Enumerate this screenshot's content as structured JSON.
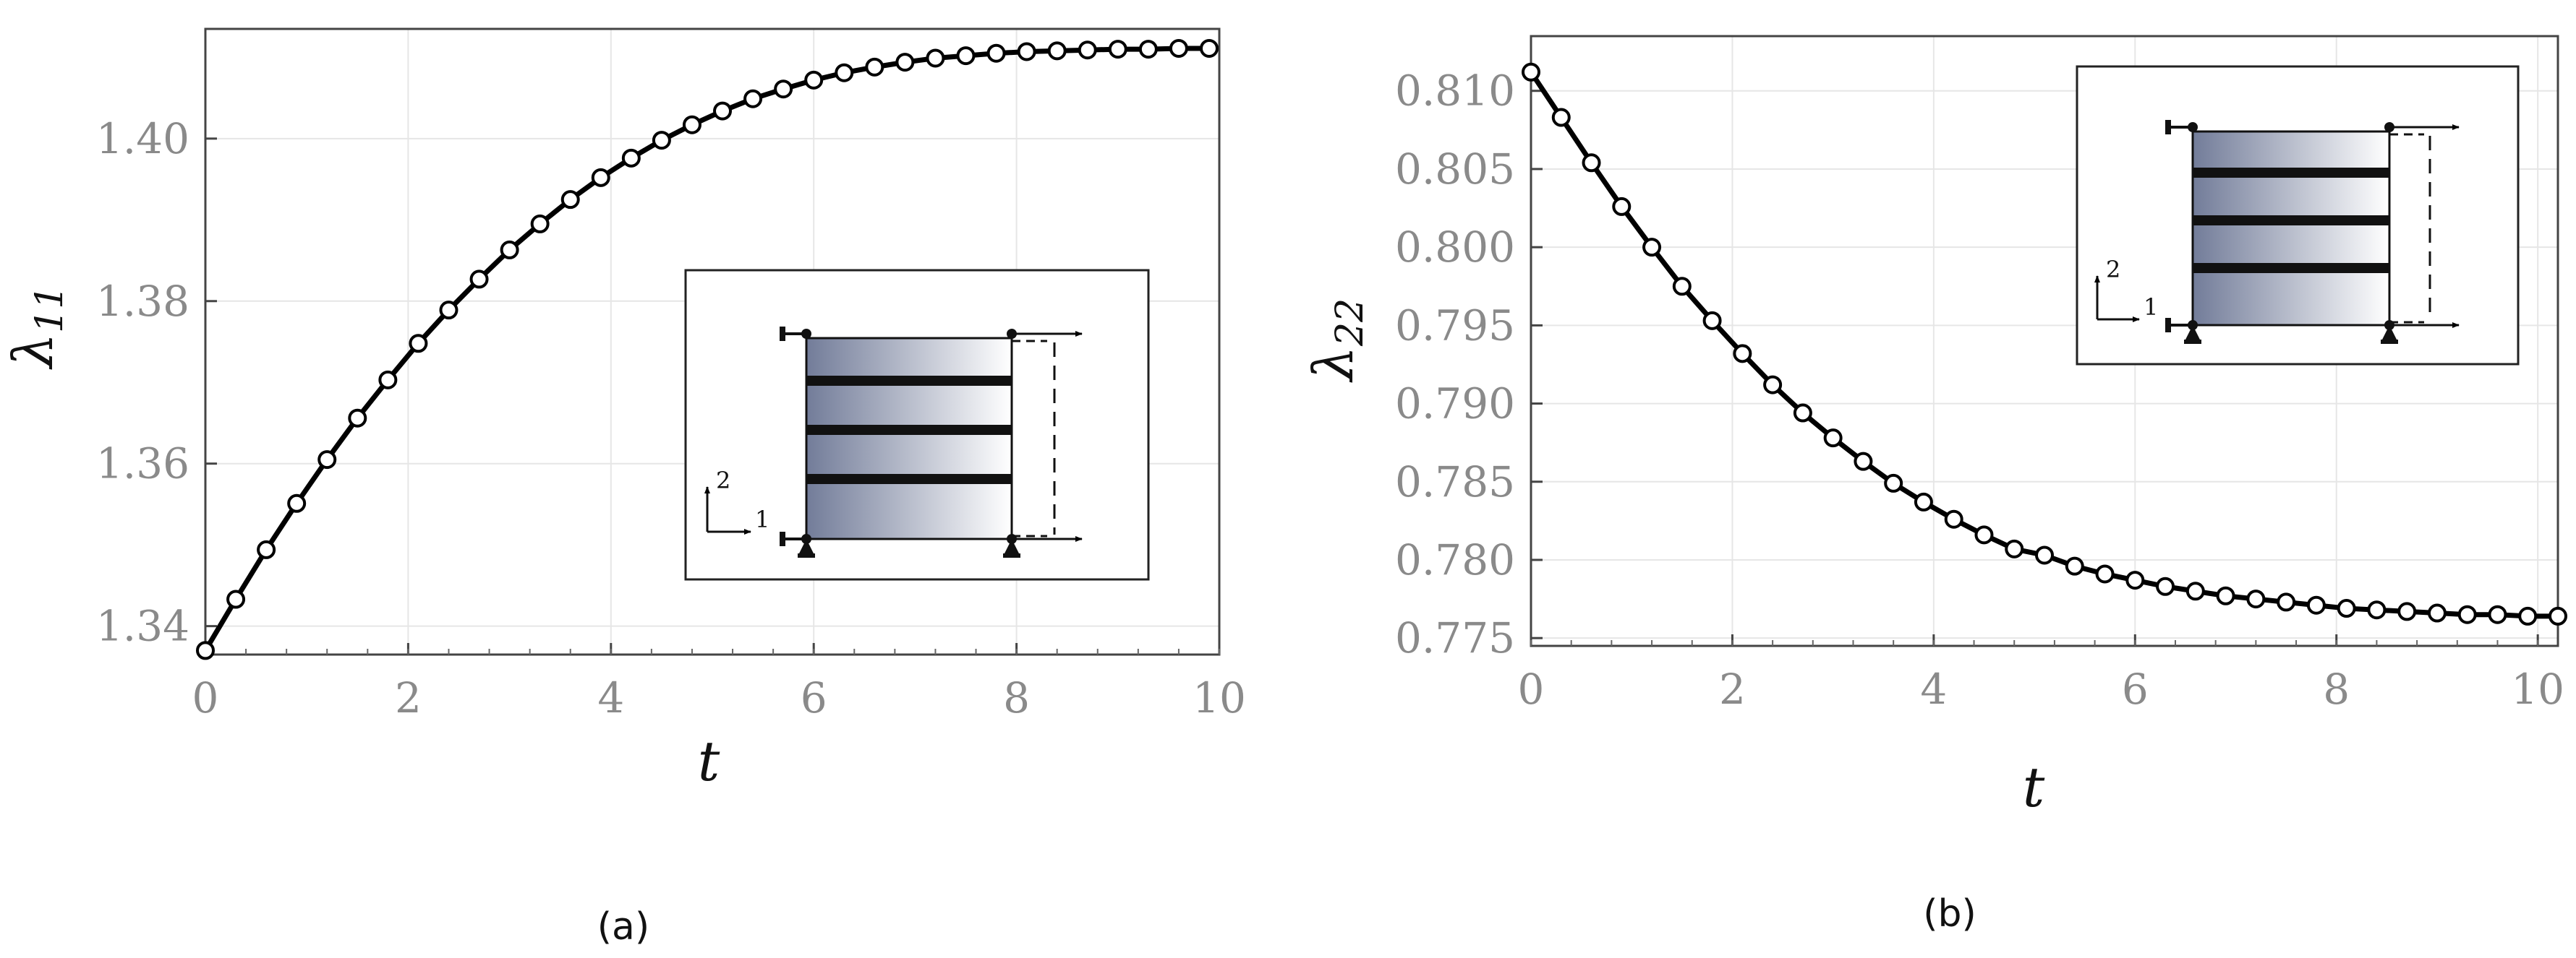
{
  "panel_labels": [
    "(a)",
    "(b)"
  ],
  "inset_axis_labels": {
    "axis1": "1",
    "axis2": "2"
  },
  "chart_data": [
    {
      "type": "line",
      "xlabel": "t",
      "ylabel": "λ",
      "ylabel_sub": "11",
      "xlim": [
        0,
        10
      ],
      "ylim": [
        1.3365,
        1.4135
      ],
      "xticks": [
        0,
        2,
        4,
        6,
        8,
        10
      ],
      "yticks": [
        1.34,
        1.36,
        1.38,
        1.4
      ],
      "ytick_labels": [
        "1.34",
        "1.36",
        "1.38",
        "1.40"
      ],
      "grid": true,
      "inset_position": "bottom-right",
      "series": [
        {
          "line_color": "#000000",
          "marker": "open-circle",
          "x": [
            0,
            0.3,
            0.6,
            0.9,
            1.2,
            1.5,
            1.8,
            2.1,
            2.4,
            2.7,
            3.0,
            3.3,
            3.6,
            3.9,
            4.2,
            4.5,
            4.8,
            5.1,
            5.4,
            5.7,
            6.0,
            6.3,
            6.6,
            6.9,
            7.2,
            7.5,
            7.8,
            8.1,
            8.4,
            8.7,
            9.0,
            9.3,
            9.6,
            9.9
          ],
          "y": [
            1.337,
            1.3433,
            1.3494,
            1.3551,
            1.3605,
            1.3656,
            1.3703,
            1.3748,
            1.3789,
            1.3827,
            1.3863,
            1.3895,
            1.3925,
            1.3952,
            1.3976,
            1.3998,
            1.4017,
            1.4034,
            1.4049,
            1.4061,
            1.4072,
            1.4081,
            1.4088,
            1.4094,
            1.4099,
            1.4102,
            1.4105,
            1.4107,
            1.4108,
            1.4109,
            1.411,
            1.411,
            1.4111,
            1.4111
          ]
        }
      ]
    },
    {
      "type": "line",
      "xlabel": "t",
      "ylabel": "λ",
      "ylabel_sub": "22",
      "xlim": [
        0,
        10.2
      ],
      "ylim": [
        0.7745,
        0.8135
      ],
      "xticks": [
        0,
        2,
        4,
        6,
        8,
        10
      ],
      "yticks": [
        0.775,
        0.78,
        0.785,
        0.79,
        0.795,
        0.8,
        0.805,
        0.81
      ],
      "ytick_labels": [
        "0.775",
        "0.780",
        "0.785",
        "0.790",
        "0.795",
        "0.800",
        "0.805",
        "0.810"
      ],
      "grid": true,
      "inset_position": "top-right",
      "series": [
        {
          "line_color": "#000000",
          "marker": "open-circle",
          "x": [
            0,
            0.3,
            0.6,
            0.9,
            1.2,
            1.5,
            1.8,
            2.1,
            2.4,
            2.7,
            3.0,
            3.3,
            3.6,
            3.9,
            4.2,
            4.5,
            4.8,
            5.1,
            5.4,
            5.7,
            6.0,
            6.3,
            6.6,
            6.9,
            7.2,
            7.5,
            7.8,
            8.1,
            8.4,
            8.7,
            9.0,
            9.3,
            9.6,
            9.9,
            10.2
          ],
          "y": [
            0.8112,
            0.8083,
            0.8054,
            0.8026,
            0.8,
            0.7975,
            0.7953,
            0.7932,
            0.7912,
            0.7894,
            0.7878,
            0.7863,
            0.7849,
            0.7837,
            0.7826,
            0.7816,
            0.7807,
            0.7803,
            0.7796,
            0.7791,
            0.7787,
            0.7783,
            0.778,
            0.7777,
            0.7775,
            0.7773,
            0.7771,
            0.7769,
            0.7768,
            0.7767,
            0.7766,
            0.7765,
            0.7765,
            0.7764,
            0.7764
          ]
        }
      ]
    }
  ]
}
